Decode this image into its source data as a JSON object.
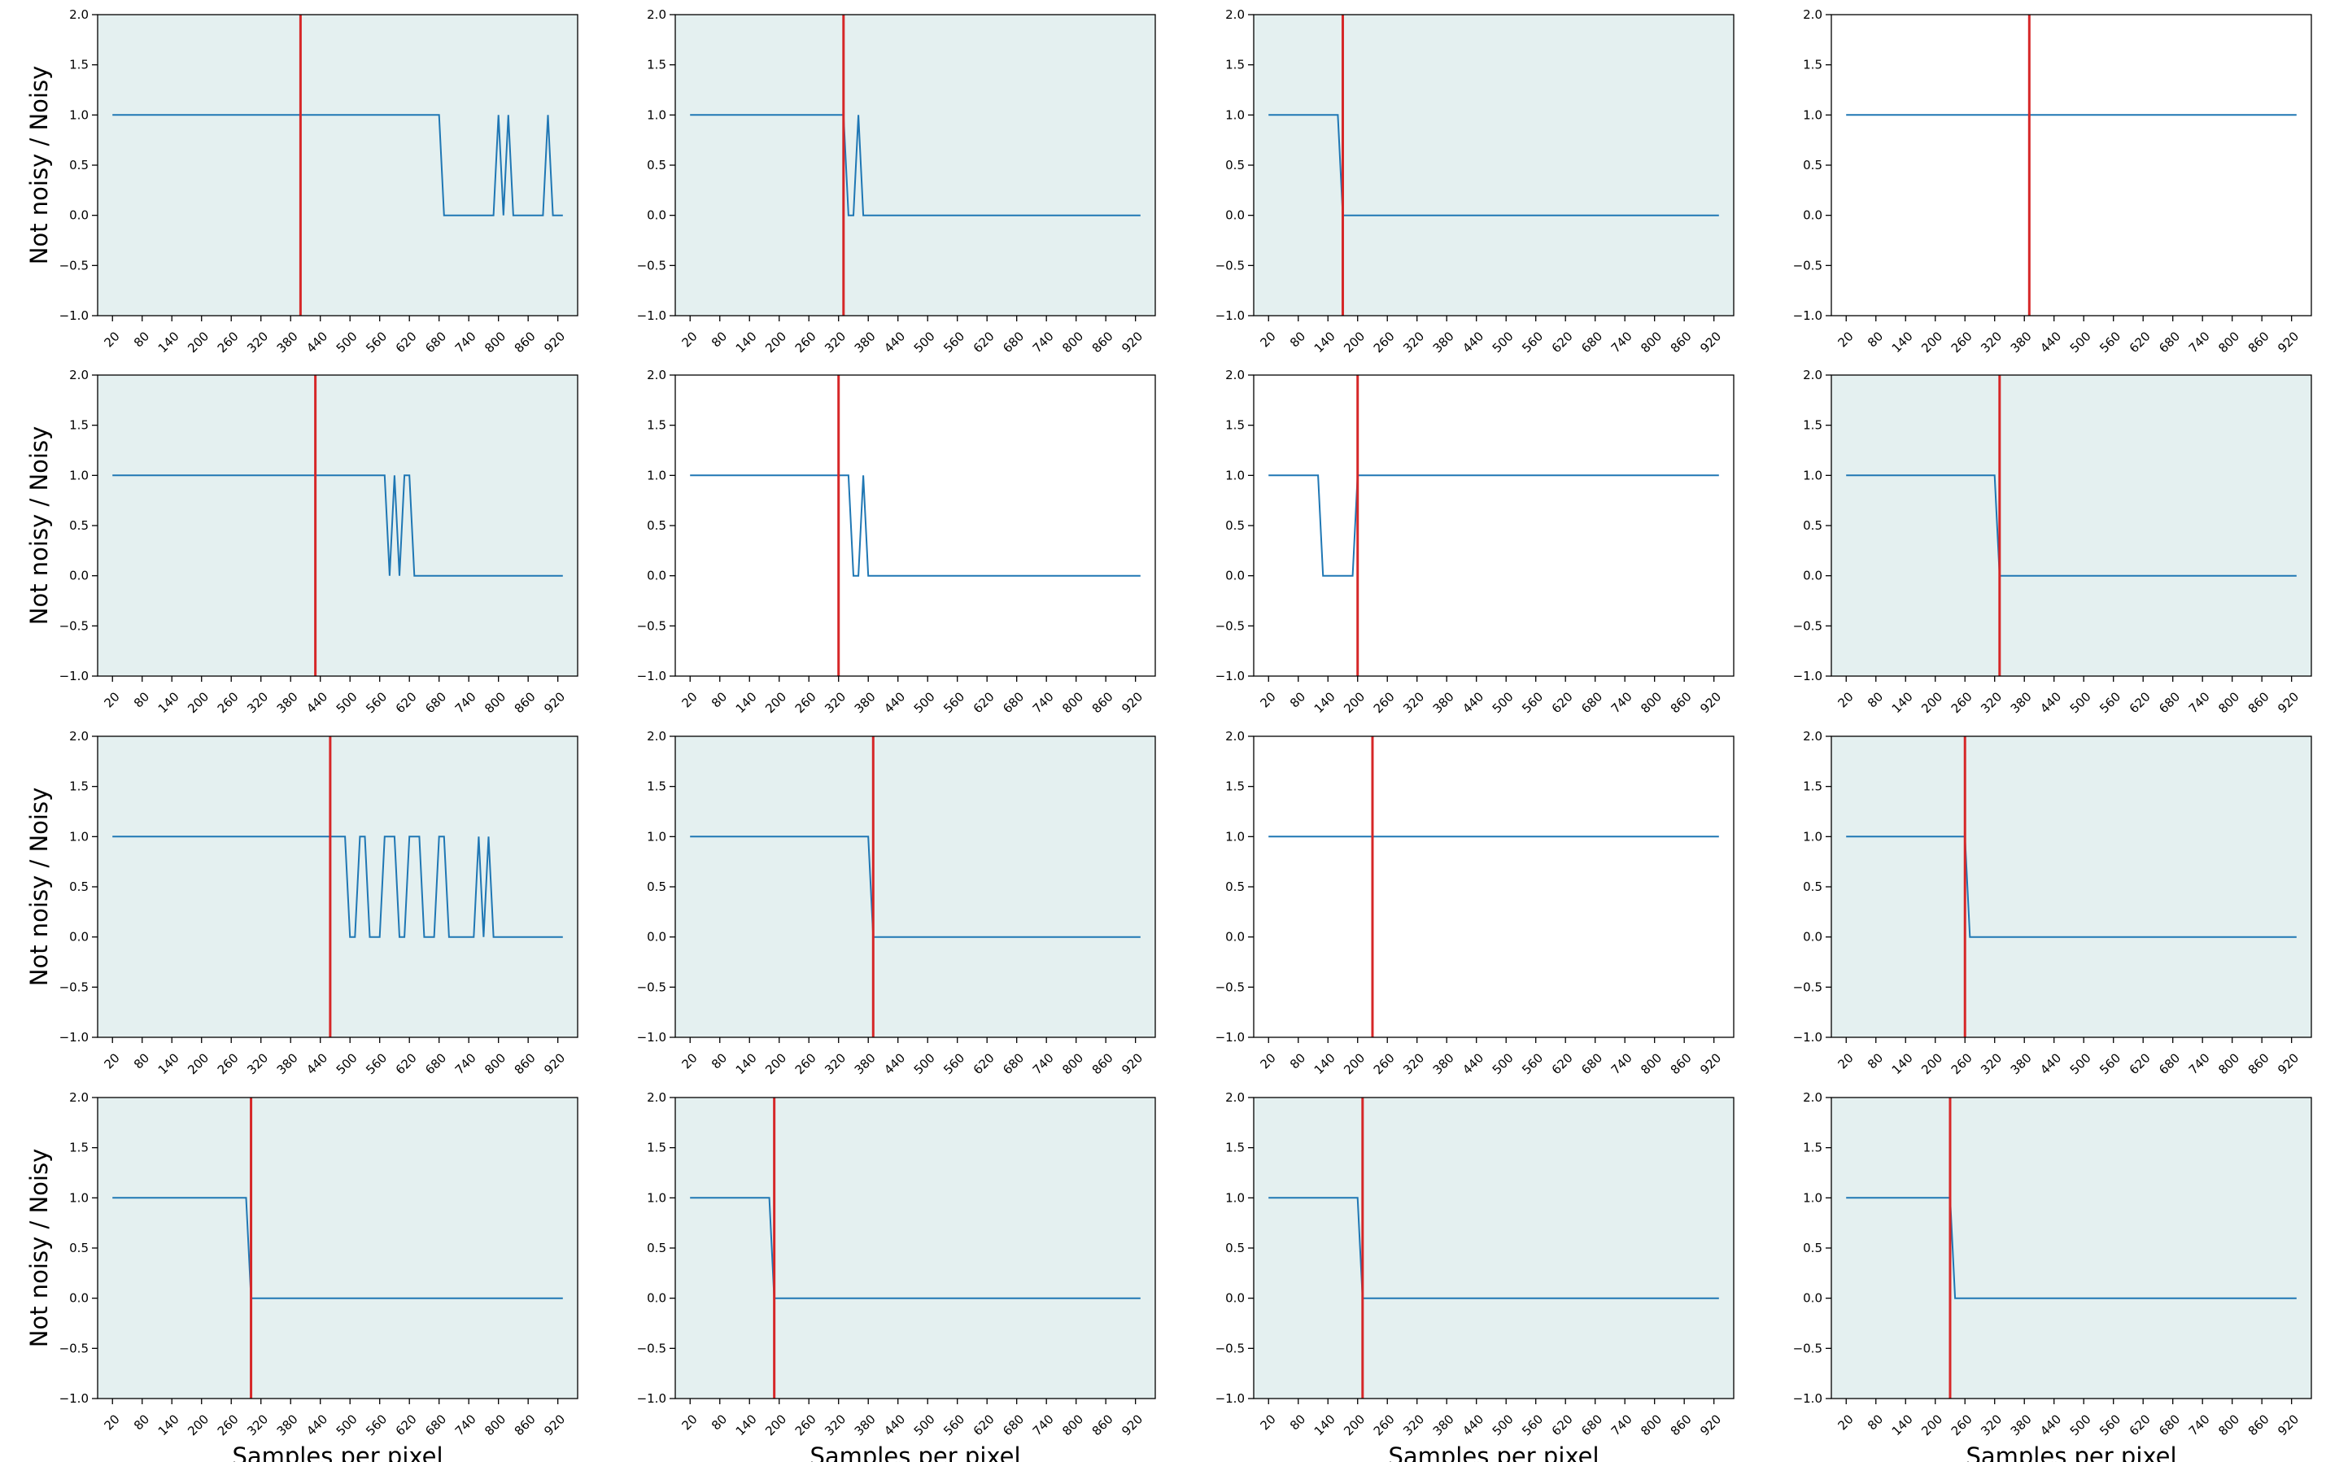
{
  "figure": {
    "colors": {
      "line": "#1f77b4",
      "threshold": "#d62728",
      "shaded_bg": "#e4f0f0",
      "plain_bg": "#ffffff",
      "frame": "#000000"
    }
  },
  "chart_data": [
    {
      "type": "line",
      "xlabel": "",
      "ylabel": "Not noisy / Noisy",
      "shaded": true,
      "threshold_x": 400,
      "switch_points": [
        {
          "x": 690,
          "y": 0
        },
        {
          "x": 800,
          "y": 1
        },
        {
          "x": 810,
          "y": 0
        },
        {
          "x": 820,
          "y": 1
        },
        {
          "x": 830,
          "y": 0
        },
        {
          "x": 900,
          "y": 1
        },
        {
          "x": 910,
          "y": 0
        }
      ],
      "x_end": 930,
      "ylim": [
        -1,
        2
      ],
      "yticks": [
        -1.0,
        -0.5,
        0.0,
        0.5,
        1.0,
        1.5,
        2.0
      ],
      "xticks": [
        20,
        80,
        140,
        200,
        260,
        320,
        380,
        440,
        500,
        560,
        620,
        680,
        740,
        800,
        860,
        920
      ],
      "grid": false
    },
    {
      "type": "line",
      "xlabel": "",
      "ylabel": "",
      "shaded": true,
      "threshold_x": 330,
      "switch_points": [
        {
          "x": 340,
          "y": 0
        },
        {
          "x": 360,
          "y": 1
        },
        {
          "x": 370,
          "y": 0
        }
      ],
      "x_end": 930,
      "ylim": [
        -1,
        2
      ],
      "yticks": [
        -1.0,
        -0.5,
        0.0,
        0.5,
        1.0,
        1.5,
        2.0
      ],
      "xticks": [
        20,
        80,
        140,
        200,
        260,
        320,
        380,
        440,
        500,
        560,
        620,
        680,
        740,
        800,
        860,
        920
      ],
      "grid": false
    },
    {
      "type": "line",
      "xlabel": "",
      "ylabel": "",
      "shaded": true,
      "threshold_x": 170,
      "switch_points": [
        {
          "x": 170,
          "y": 0
        }
      ],
      "x_end": 930,
      "ylim": [
        -1,
        2
      ],
      "yticks": [
        -1.0,
        -0.5,
        0.0,
        0.5,
        1.0,
        1.5,
        2.0
      ],
      "xticks": [
        20,
        80,
        140,
        200,
        260,
        320,
        380,
        440,
        500,
        560,
        620,
        680,
        740,
        800,
        860,
        920
      ],
      "grid": false
    },
    {
      "type": "line",
      "xlabel": "",
      "ylabel": "",
      "shaded": false,
      "threshold_x": 390,
      "switch_points": [],
      "x_end": 930,
      "ylim": [
        -1,
        2
      ],
      "yticks": [
        -1.0,
        -0.5,
        0.0,
        0.5,
        1.0,
        1.5,
        2.0
      ],
      "xticks": [
        20,
        80,
        140,
        200,
        260,
        320,
        380,
        440,
        500,
        560,
        620,
        680,
        740,
        800,
        860,
        920
      ],
      "grid": false
    },
    {
      "type": "line",
      "xlabel": "",
      "ylabel": "Not noisy / Noisy",
      "shaded": true,
      "threshold_x": 430,
      "switch_points": [
        {
          "x": 580,
          "y": 0
        },
        {
          "x": 590,
          "y": 1
        },
        {
          "x": 600,
          "y": 0
        },
        {
          "x": 610,
          "y": 1
        },
        {
          "x": 630,
          "y": 0
        }
      ],
      "x_end": 930,
      "ylim": [
        -1,
        2
      ],
      "yticks": [
        -1.0,
        -0.5,
        0.0,
        0.5,
        1.0,
        1.5,
        2.0
      ],
      "xticks": [
        20,
        80,
        140,
        200,
        260,
        320,
        380,
        440,
        500,
        560,
        620,
        680,
        740,
        800,
        860,
        920
      ],
      "grid": false
    },
    {
      "type": "line",
      "xlabel": "",
      "ylabel": "",
      "shaded": false,
      "threshold_x": 320,
      "switch_points": [
        {
          "x": 350,
          "y": 0
        },
        {
          "x": 370,
          "y": 1
        },
        {
          "x": 380,
          "y": 0
        }
      ],
      "x_end": 930,
      "ylim": [
        -1,
        2
      ],
      "yticks": [
        -1.0,
        -0.5,
        0.0,
        0.5,
        1.0,
        1.5,
        2.0
      ],
      "xticks": [
        20,
        80,
        140,
        200,
        260,
        320,
        380,
        440,
        500,
        560,
        620,
        680,
        740,
        800,
        860,
        920
      ],
      "grid": false
    },
    {
      "type": "line",
      "xlabel": "",
      "ylabel": "",
      "shaded": false,
      "threshold_x": 200,
      "switch_points": [
        {
          "x": 130,
          "y": 0
        },
        {
          "x": 200,
          "y": 1
        }
      ],
      "x_end": 930,
      "ylim": [
        -1,
        2
      ],
      "yticks": [
        -1.0,
        -0.5,
        0.0,
        0.5,
        1.0,
        1.5,
        2.0
      ],
      "xticks": [
        20,
        80,
        140,
        200,
        260,
        320,
        380,
        440,
        500,
        560,
        620,
        680,
        740,
        800,
        860,
        920
      ],
      "grid": false
    },
    {
      "type": "line",
      "xlabel": "",
      "ylabel": "",
      "shaded": true,
      "threshold_x": 330,
      "switch_points": [
        {
          "x": 330,
          "y": 0
        }
      ],
      "x_end": 930,
      "ylim": [
        -1,
        2
      ],
      "yticks": [
        -1.0,
        -0.5,
        0.0,
        0.5,
        1.0,
        1.5,
        2.0
      ],
      "xticks": [
        20,
        80,
        140,
        200,
        260,
        320,
        380,
        440,
        500,
        560,
        620,
        680,
        740,
        800,
        860,
        920
      ],
      "grid": false
    },
    {
      "type": "line",
      "xlabel": "",
      "ylabel": "Not noisy / Noisy",
      "shaded": true,
      "threshold_x": 460,
      "switch_points": [
        {
          "x": 500,
          "y": 0
        },
        {
          "x": 520,
          "y": 1
        },
        {
          "x": 540,
          "y": 0
        },
        {
          "x": 570,
          "y": 1
        },
        {
          "x": 600,
          "y": 0
        },
        {
          "x": 620,
          "y": 1
        },
        {
          "x": 650,
          "y": 0
        },
        {
          "x": 680,
          "y": 1
        },
        {
          "x": 700,
          "y": 0
        },
        {
          "x": 760,
          "y": 1
        },
        {
          "x": 770,
          "y": 0
        },
        {
          "x": 780,
          "y": 1
        },
        {
          "x": 790,
          "y": 0
        }
      ],
      "x_end": 930,
      "ylim": [
        -1,
        2
      ],
      "yticks": [
        -1.0,
        -0.5,
        0.0,
        0.5,
        1.0,
        1.5,
        2.0
      ],
      "xticks": [
        20,
        80,
        140,
        200,
        260,
        320,
        380,
        440,
        500,
        560,
        620,
        680,
        740,
        800,
        860,
        920
      ],
      "grid": false
    },
    {
      "type": "line",
      "xlabel": "",
      "ylabel": "",
      "shaded": true,
      "threshold_x": 390,
      "switch_points": [
        {
          "x": 390,
          "y": 0
        }
      ],
      "x_end": 930,
      "ylim": [
        -1,
        2
      ],
      "yticks": [
        -1.0,
        -0.5,
        0.0,
        0.5,
        1.0,
        1.5,
        2.0
      ],
      "xticks": [
        20,
        80,
        140,
        200,
        260,
        320,
        380,
        440,
        500,
        560,
        620,
        680,
        740,
        800,
        860,
        920
      ],
      "grid": false
    },
    {
      "type": "line",
      "xlabel": "",
      "ylabel": "",
      "shaded": false,
      "threshold_x": 230,
      "switch_points": [],
      "x_end": 930,
      "ylim": [
        -1,
        2
      ],
      "yticks": [
        -1.0,
        -0.5,
        0.0,
        0.5,
        1.0,
        1.5,
        2.0
      ],
      "xticks": [
        20,
        80,
        140,
        200,
        260,
        320,
        380,
        440,
        500,
        560,
        620,
        680,
        740,
        800,
        860,
        920
      ],
      "grid": false
    },
    {
      "type": "line",
      "xlabel": "",
      "ylabel": "",
      "shaded": true,
      "threshold_x": 260,
      "switch_points": [
        {
          "x": 270,
          "y": 0
        }
      ],
      "x_end": 930,
      "ylim": [
        -1,
        2
      ],
      "yticks": [
        -1.0,
        -0.5,
        0.0,
        0.5,
        1.0,
        1.5,
        2.0
      ],
      "xticks": [
        20,
        80,
        140,
        200,
        260,
        320,
        380,
        440,
        500,
        560,
        620,
        680,
        740,
        800,
        860,
        920
      ],
      "grid": false
    },
    {
      "type": "line",
      "xlabel": "Samples per pixel",
      "ylabel": "Not noisy / Noisy",
      "shaded": true,
      "threshold_x": 300,
      "switch_points": [
        {
          "x": 300,
          "y": 0
        }
      ],
      "x_end": 930,
      "ylim": [
        -1,
        2
      ],
      "yticks": [
        -1.0,
        -0.5,
        0.0,
        0.5,
        1.0,
        1.5,
        2.0
      ],
      "xticks": [
        20,
        80,
        140,
        200,
        260,
        320,
        380,
        440,
        500,
        560,
        620,
        680,
        740,
        800,
        860,
        920
      ],
      "grid": false
    },
    {
      "type": "line",
      "xlabel": "Samples per pixel",
      "ylabel": "",
      "shaded": true,
      "threshold_x": 190,
      "switch_points": [
        {
          "x": 190,
          "y": 0
        }
      ],
      "x_end": 930,
      "ylim": [
        -1,
        2
      ],
      "yticks": [
        -1.0,
        -0.5,
        0.0,
        0.5,
        1.0,
        1.5,
        2.0
      ],
      "xticks": [
        20,
        80,
        140,
        200,
        260,
        320,
        380,
        440,
        500,
        560,
        620,
        680,
        740,
        800,
        860,
        920
      ],
      "grid": false
    },
    {
      "type": "line",
      "xlabel": "Samples per pixel",
      "ylabel": "",
      "shaded": true,
      "threshold_x": 210,
      "switch_points": [
        {
          "x": 210,
          "y": 0
        }
      ],
      "x_end": 930,
      "ylim": [
        -1,
        2
      ],
      "yticks": [
        -1.0,
        -0.5,
        0.0,
        0.5,
        1.0,
        1.5,
        2.0
      ],
      "xticks": [
        20,
        80,
        140,
        200,
        260,
        320,
        380,
        440,
        500,
        560,
        620,
        680,
        740,
        800,
        860,
        920
      ],
      "grid": false
    },
    {
      "type": "line",
      "xlabel": "Samples per pixel",
      "ylabel": "",
      "shaded": true,
      "threshold_x": 230,
      "switch_points": [
        {
          "x": 240,
          "y": 0
        }
      ],
      "x_end": 930,
      "ylim": [
        -1,
        2
      ],
      "yticks": [
        -1.0,
        -0.5,
        0.0,
        0.5,
        1.0,
        1.5,
        2.0
      ],
      "xticks": [
        20,
        80,
        140,
        200,
        260,
        320,
        380,
        440,
        500,
        560,
        620,
        680,
        740,
        800,
        860,
        920
      ],
      "grid": false
    }
  ]
}
